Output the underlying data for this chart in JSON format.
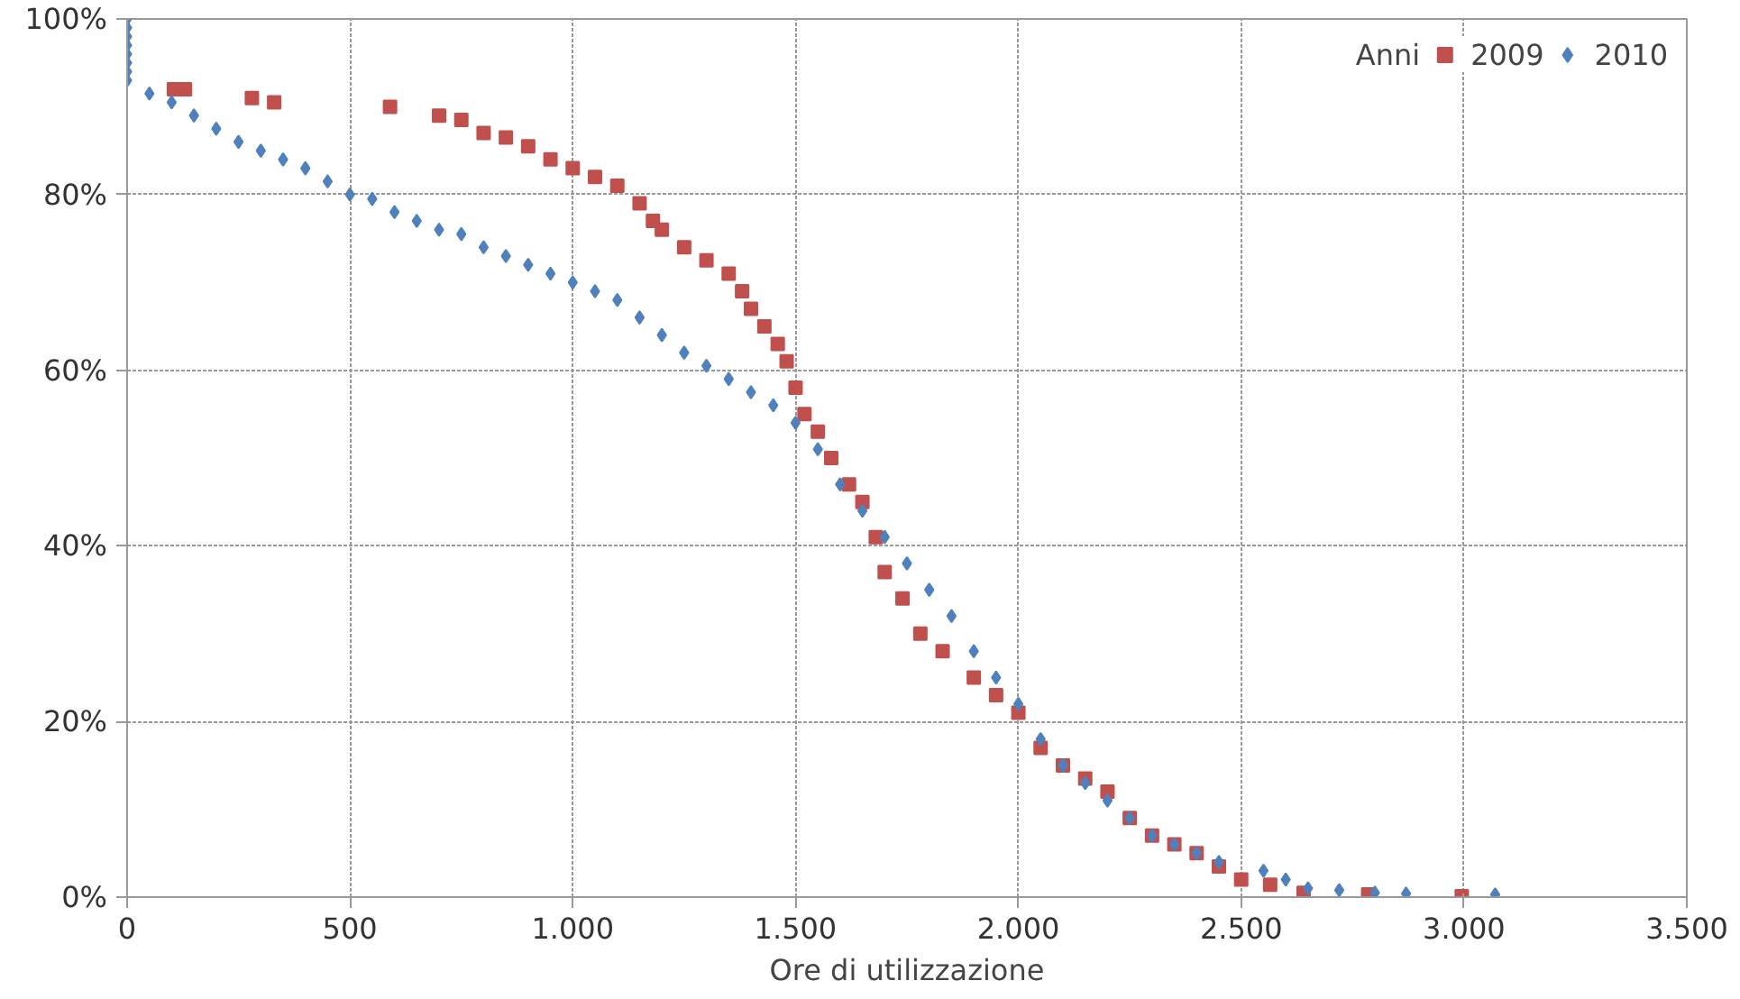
{
  "chart_data": {
    "type": "scatter",
    "xlabel": "Ore di utilizzazione",
    "legend_title": "Anni",
    "legend": "top right",
    "grid": true,
    "xlim": [
      0,
      3500
    ],
    "ylim": [
      0,
      100
    ],
    "xticks": [
      {
        "value": 0,
        "label": "0"
      },
      {
        "value": 500,
        "label": "500"
      },
      {
        "value": 1000,
        "label": "1.000"
      },
      {
        "value": 1500,
        "label": "1.500"
      },
      {
        "value": 2000,
        "label": "2.000"
      },
      {
        "value": 2500,
        "label": "2.500"
      },
      {
        "value": 3000,
        "label": "3.000"
      },
      {
        "value": 3500,
        "label": "3.500"
      }
    ],
    "yticks": [
      {
        "value": 0,
        "label": "0%"
      },
      {
        "value": 20,
        "label": "20%"
      },
      {
        "value": 40,
        "label": "40%"
      },
      {
        "value": 60,
        "label": "60%"
      },
      {
        "value": 80,
        "label": "80%"
      },
      {
        "value": 100,
        "label": "100%"
      }
    ],
    "series": [
      {
        "name": "2009",
        "color": "#c0504d",
        "marker": "square",
        "x": [
          105,
          130,
          280,
          330,
          590,
          700,
          750,
          800,
          850,
          900,
          950,
          1000,
          1050,
          1100,
          1150,
          1180,
          1200,
          1250,
          1300,
          1350,
          1380,
          1400,
          1430,
          1460,
          1480,
          1500,
          1520,
          1550,
          1580,
          1620,
          1650,
          1680,
          1700,
          1740,
          1780,
          1830,
          1900,
          1950,
          2000,
          2050,
          2100,
          2150,
          2200,
          2250,
          2300,
          2350,
          2400,
          2450,
          2500,
          2565,
          2640,
          2785,
          2995
        ],
        "values": [
          92,
          92,
          91,
          90.5,
          90,
          89,
          88.5,
          87,
          86.5,
          85.5,
          84,
          83,
          82,
          81,
          79,
          77,
          76,
          74,
          72.5,
          71,
          69,
          67,
          65,
          63,
          61,
          58,
          55,
          53,
          50,
          47,
          45,
          41,
          37,
          34,
          30,
          28,
          25,
          23,
          21,
          17,
          15,
          13.5,
          12,
          9,
          7,
          6,
          5,
          3.5,
          2,
          1.4,
          0.5,
          0.3,
          0.1
        ]
      },
      {
        "name": "2010",
        "color": "#4f81bd",
        "marker": "diamond",
        "x": [
          0,
          0,
          0,
          0,
          0,
          0,
          0,
          0,
          50,
          100,
          150,
          200,
          250,
          300,
          350,
          400,
          450,
          500,
          550,
          600,
          650,
          700,
          750,
          800,
          850,
          900,
          950,
          1000,
          1050,
          1100,
          1150,
          1200,
          1250,
          1300,
          1350,
          1400,
          1450,
          1500,
          1550,
          1600,
          1650,
          1700,
          1750,
          1800,
          1850,
          1900,
          1950,
          2000,
          2050,
          2100,
          2150,
          2200,
          2250,
          2300,
          2350,
          2400,
          2450,
          2550,
          2600,
          2650,
          2720,
          2800,
          2870,
          3070
        ],
        "values": [
          100,
          99,
          98,
          97,
          96,
          95,
          94,
          93,
          91.5,
          90.5,
          89,
          87.5,
          86,
          85,
          84,
          83,
          81.5,
          80,
          79.5,
          78,
          77,
          76,
          75.5,
          74,
          73,
          72,
          71,
          70,
          69,
          68,
          66,
          64,
          62,
          60.5,
          59,
          57.5,
          56,
          54,
          51,
          47,
          44,
          41,
          38,
          35,
          32,
          28,
          25,
          22,
          18,
          15,
          13,
          11,
          9,
          7,
          6,
          5,
          4,
          3,
          2,
          1,
          0.8,
          0.5,
          0.4,
          0.3
        ]
      }
    ]
  }
}
